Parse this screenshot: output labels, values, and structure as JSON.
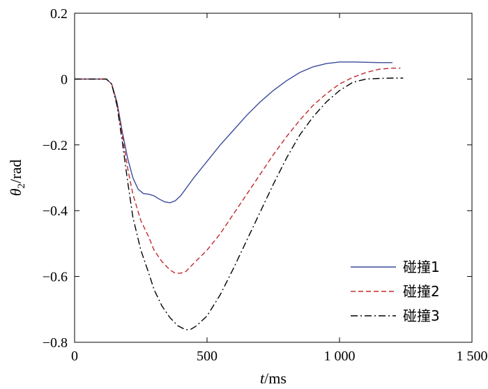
{
  "chart_data": {
    "type": "line",
    "title": "",
    "xlabel": {
      "var": "t",
      "unit": "/ms"
    },
    "ylabel": {
      "var": "θ",
      "sub": "2",
      "unit": "/rad"
    },
    "xlim": [
      0,
      1500
    ],
    "ylim": [
      -0.8,
      0.2
    ],
    "xticks": [
      0,
      500,
      1000,
      1500
    ],
    "xtick_labels": [
      "0",
      "500",
      "1 000",
      "1 500"
    ],
    "yticks": [
      -0.8,
      -0.6,
      -0.4,
      -0.2,
      0,
      0.2
    ],
    "ytick_labels": [
      "−0.8",
      "−0.6",
      "−0.4",
      "−0.2",
      "0",
      "0.2"
    ],
    "grid": false,
    "legend_position": "bottom-right",
    "series": [
      {
        "name": "碰撞1",
        "color": "#3a4a9a",
        "dash": "solid",
        "x": [
          0,
          100,
          120,
          140,
          160,
          180,
          200,
          220,
          240,
          260,
          280,
          300,
          320,
          340,
          360,
          380,
          400,
          450,
          500,
          550,
          600,
          650,
          700,
          750,
          800,
          850,
          900,
          950,
          1000,
          1050,
          1100,
          1150,
          1200
        ],
        "y": [
          0,
          0,
          0,
          -0.015,
          -0.07,
          -0.16,
          -0.24,
          -0.3,
          -0.335,
          -0.348,
          -0.35,
          -0.355,
          -0.365,
          -0.373,
          -0.376,
          -0.37,
          -0.355,
          -0.3,
          -0.25,
          -0.2,
          -0.155,
          -0.11,
          -0.07,
          -0.035,
          -0.005,
          0.02,
          0.037,
          0.047,
          0.052,
          0.052,
          0.051,
          0.05,
          0.05
        ]
      },
      {
        "name": "碰撞2",
        "color": "#c0282a",
        "dash": "dashed",
        "x": [
          0,
          100,
          120,
          140,
          160,
          180,
          200,
          220,
          250,
          280,
          300,
          330,
          360,
          380,
          400,
          420,
          450,
          500,
          550,
          600,
          650,
          700,
          750,
          800,
          850,
          900,
          950,
          1000,
          1050,
          1100,
          1150,
          1200,
          1230
        ],
        "y": [
          0,
          0,
          0,
          -0.015,
          -0.075,
          -0.17,
          -0.27,
          -0.35,
          -0.43,
          -0.48,
          -0.52,
          -0.555,
          -0.58,
          -0.59,
          -0.59,
          -0.585,
          -0.56,
          -0.52,
          -0.47,
          -0.41,
          -0.35,
          -0.29,
          -0.23,
          -0.175,
          -0.125,
          -0.08,
          -0.045,
          -0.015,
          0.005,
          0.02,
          0.03,
          0.033,
          0.033
        ]
      },
      {
        "name": "碰撞3",
        "color": "#000000",
        "dash": "dashdot",
        "x": [
          0,
          100,
          120,
          140,
          160,
          180,
          200,
          220,
          250,
          280,
          300,
          330,
          360,
          390,
          420,
          440,
          460,
          500,
          550,
          600,
          650,
          700,
          750,
          800,
          850,
          900,
          950,
          1000,
          1050,
          1100,
          1150,
          1200,
          1240
        ],
        "y": [
          0,
          0,
          0,
          -0.015,
          -0.08,
          -0.19,
          -0.31,
          -0.42,
          -0.52,
          -0.59,
          -0.64,
          -0.69,
          -0.725,
          -0.75,
          -0.762,
          -0.76,
          -0.75,
          -0.72,
          -0.655,
          -0.575,
          -0.49,
          -0.405,
          -0.32,
          -0.24,
          -0.17,
          -0.115,
          -0.07,
          -0.035,
          -0.01,
          0.0,
          0.002,
          0.003,
          0.003
        ]
      }
    ]
  }
}
